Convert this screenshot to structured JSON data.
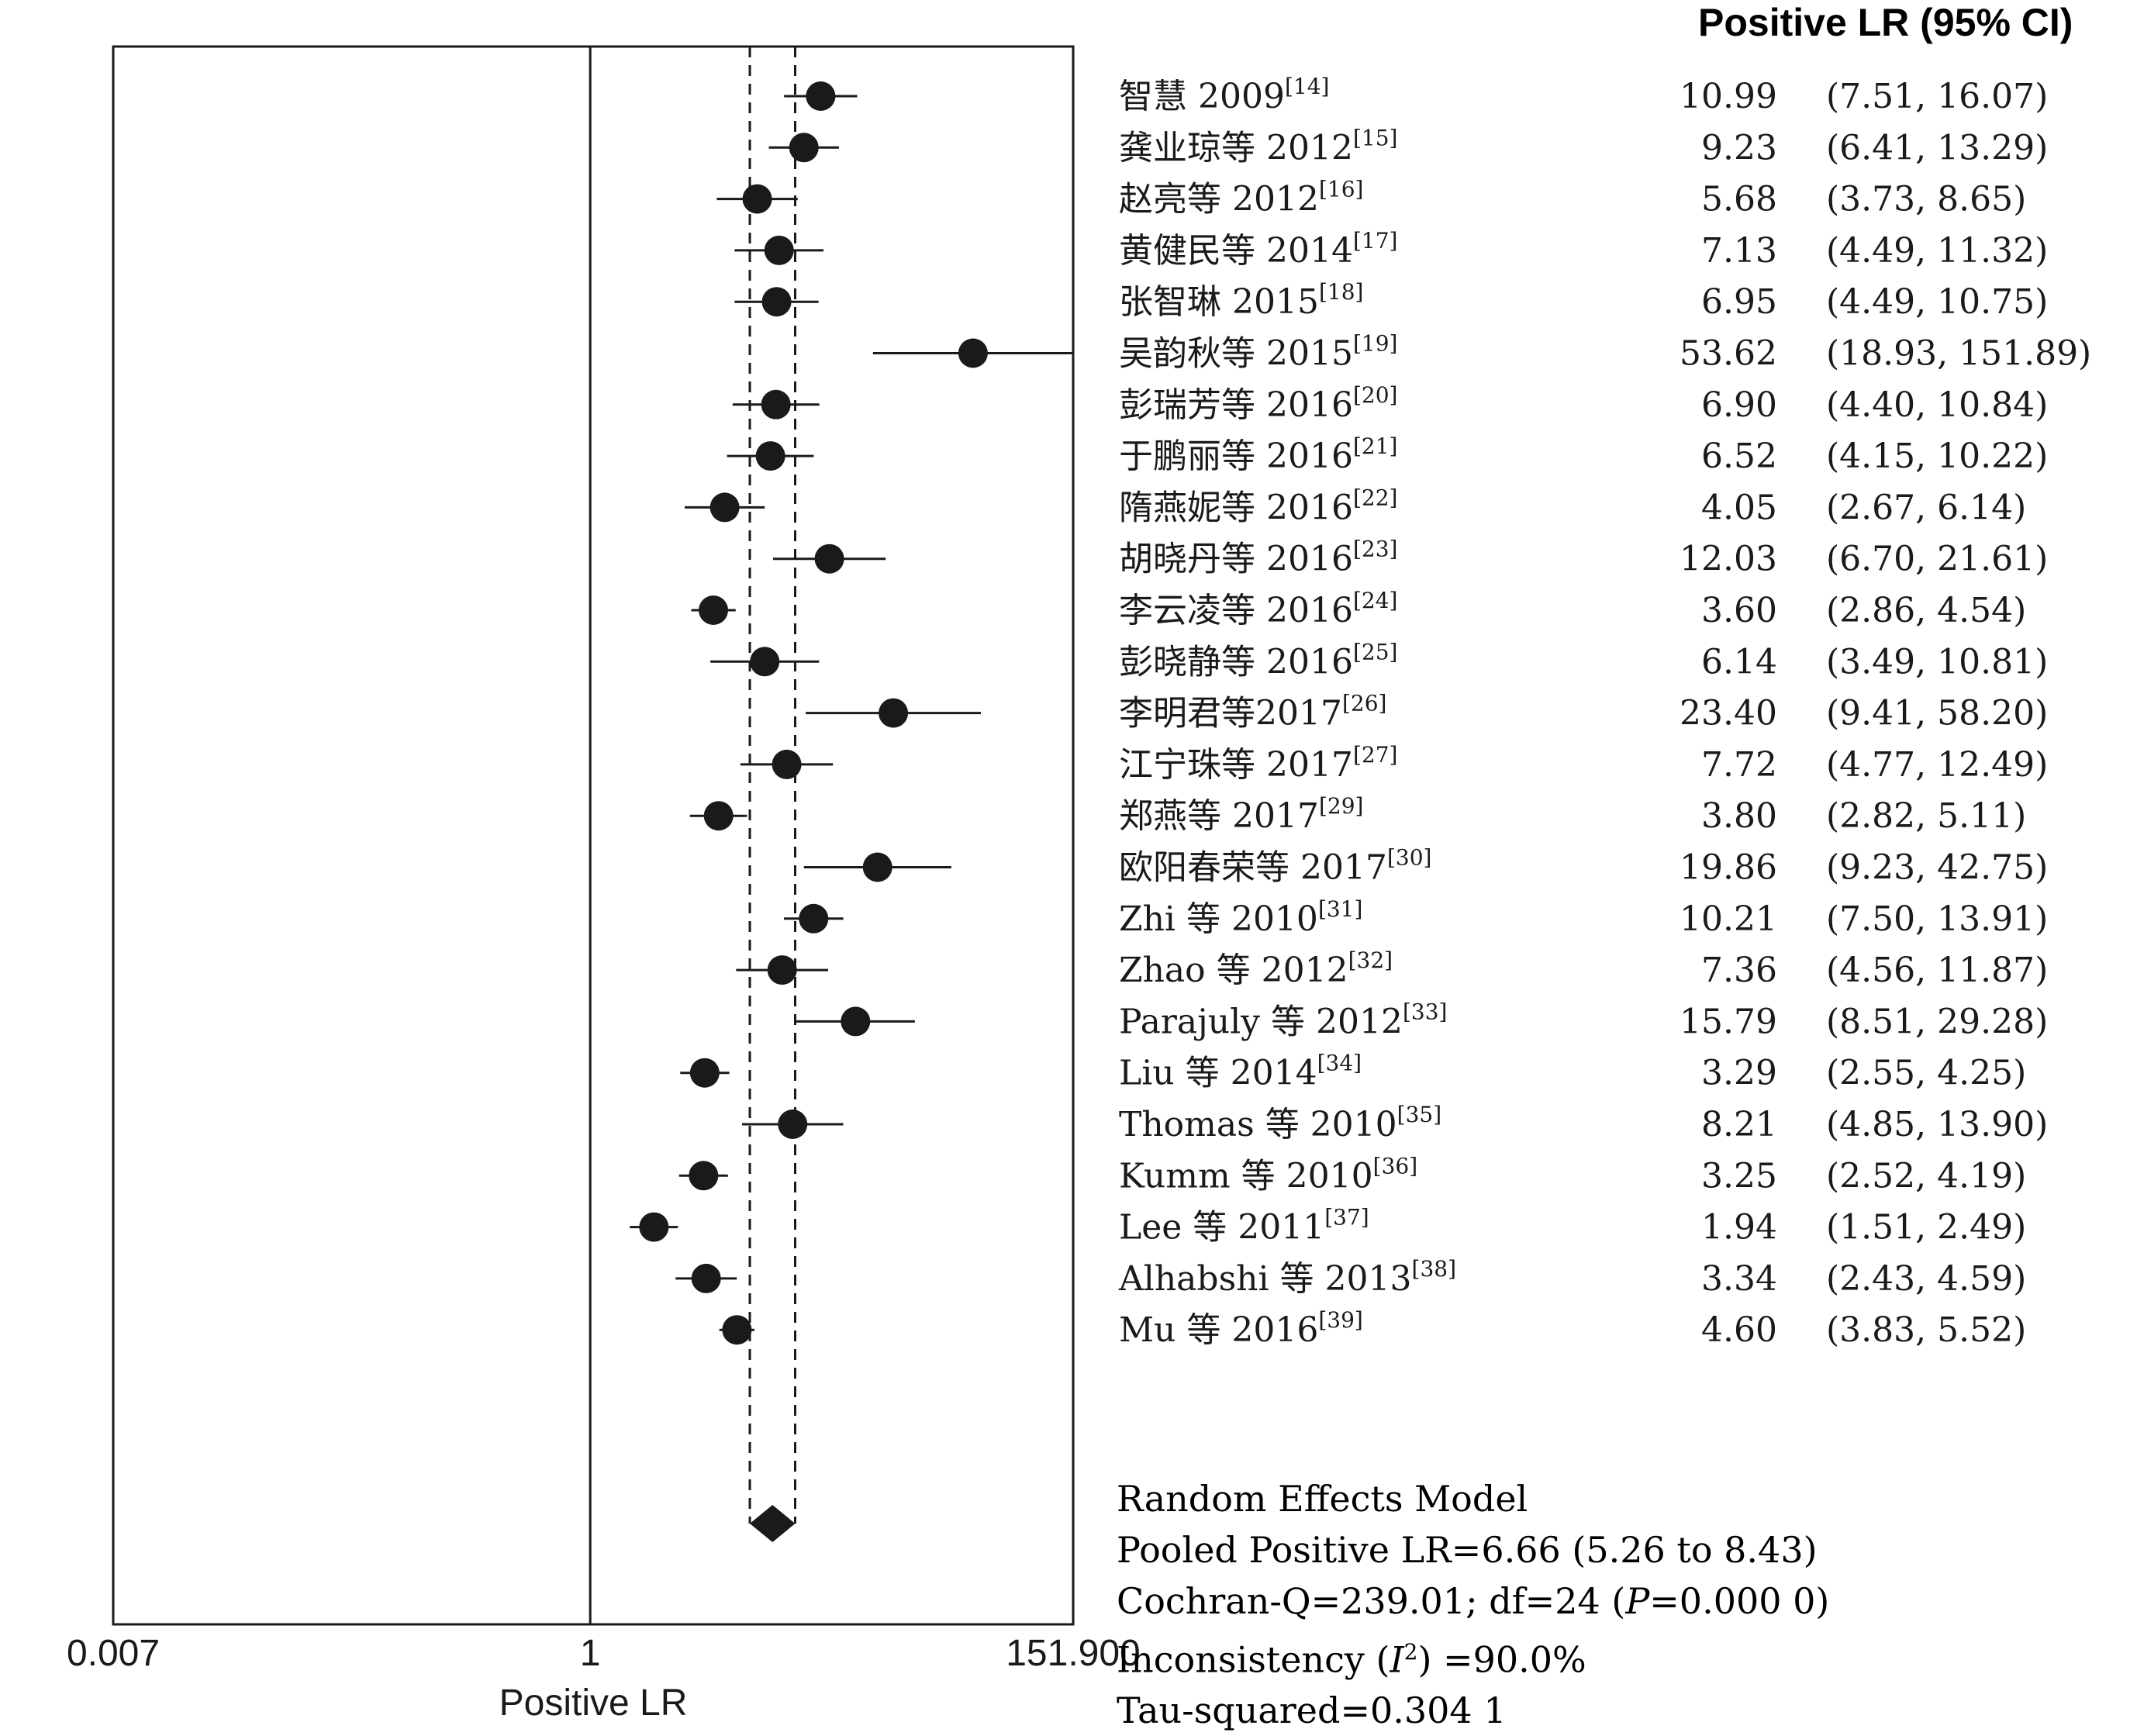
{
  "chart_data": {
    "type": "forest",
    "xlabel": "Positive LR",
    "x_scale": "log",
    "xlim": [
      0.007,
      151.9
    ],
    "x_ticks": [
      "0.007",
      "1",
      "151.900"
    ],
    "reference_line": 1,
    "pooled_ci_lines": [
      5.26,
      8.43
    ],
    "column_header": "Positive LR (95% CI)",
    "studies": [
      {
        "label": "智慧 2009",
        "ref": "[14]",
        "value": "10.99",
        "ci": "(7.51, 16.07)",
        "est": 10.99,
        "lo": 7.51,
        "hi": 16.07
      },
      {
        "label": "龚业琼等 2012",
        "ref": "[15]",
        "value": "9.23",
        "ci": "(6.41, 13.29)",
        "est": 9.23,
        "lo": 6.41,
        "hi": 13.29
      },
      {
        "label": "赵亮等 2012",
        "ref": "[16]",
        "value": "5.68",
        "ci": "(3.73, 8.65)",
        "est": 5.68,
        "lo": 3.73,
        "hi": 8.65
      },
      {
        "label": "黄健民等 2014",
        "ref": "[17]",
        "value": "7.13",
        "ci": "(4.49, 11.32)",
        "est": 7.13,
        "lo": 4.49,
        "hi": 11.32
      },
      {
        "label": "张智琳 2015",
        "ref": "[18]",
        "value": "6.95",
        "ci": "(4.49, 10.75)",
        "est": 6.95,
        "lo": 4.49,
        "hi": 10.75
      },
      {
        "label": "吴韵秋等 2015",
        "ref": "[19]",
        "value": "53.62",
        "ci": "(18.93, 151.89)",
        "est": 53.62,
        "lo": 18.93,
        "hi": 151.89
      },
      {
        "label": "彭瑞芳等 2016",
        "ref": "[20]",
        "value": "6.90",
        "ci": "(4.40, 10.84)",
        "est": 6.9,
        "lo": 4.4,
        "hi": 10.84
      },
      {
        "label": "于鹏丽等 2016",
        "ref": "[21]",
        "value": "6.52",
        "ci": "(4.15, 10.22)",
        "est": 6.52,
        "lo": 4.15,
        "hi": 10.22
      },
      {
        "label": "隋燕妮等 2016",
        "ref": "[22]",
        "value": "4.05",
        "ci": "(2.67, 6.14)",
        "est": 4.05,
        "lo": 2.67,
        "hi": 6.14
      },
      {
        "label": "胡晓丹等 2016",
        "ref": "[23]",
        "value": "12.03",
        "ci": "(6.70, 21.61)",
        "est": 12.03,
        "lo": 6.7,
        "hi": 21.61
      },
      {
        "label": "李云凌等 2016",
        "ref": "[24]",
        "value": "3.60",
        "ci": "(2.86, 4.54)",
        "est": 3.6,
        "lo": 2.86,
        "hi": 4.54
      },
      {
        "label": "彭晓静等 2016",
        "ref": "[25]",
        "value": "6.14",
        "ci": "(3.49, 10.81)",
        "est": 6.14,
        "lo": 3.49,
        "hi": 10.81
      },
      {
        "label": "李明君等2017",
        "ref": "[26]",
        "value": "23.40",
        "ci": "(9.41, 58.20)",
        "est": 23.4,
        "lo": 9.41,
        "hi": 58.2
      },
      {
        "label": "江宁珠等 2017",
        "ref": "[27]",
        "value": "7.72",
        "ci": "(4.77, 12.49)",
        "est": 7.72,
        "lo": 4.77,
        "hi": 12.49
      },
      {
        "label": "郑燕等 2017",
        "ref": "[29]",
        "value": "3.80",
        "ci": "(2.82, 5.11)",
        "est": 3.8,
        "lo": 2.82,
        "hi": 5.11
      },
      {
        "label": "欧阳春荣等 2017",
        "ref": "[30]",
        "value": "19.86",
        "ci": "(9.23, 42.75)",
        "est": 19.86,
        "lo": 9.23,
        "hi": 42.75
      },
      {
        "label": "Zhi 等 2010",
        "ref": "[31]",
        "value": "10.21",
        "ci": "(7.50, 13.91)",
        "est": 10.21,
        "lo": 7.5,
        "hi": 13.91
      },
      {
        "label": "Zhao 等 2012",
        "ref": "[32]",
        "value": "7.36",
        "ci": "(4.56, 11.87)",
        "est": 7.36,
        "lo": 4.56,
        "hi": 11.87
      },
      {
        "label": "Parajuly 等 2012",
        "ref": "[33]",
        "value": "15.79",
        "ci": "(8.51, 29.28)",
        "est": 15.79,
        "lo": 8.51,
        "hi": 29.28
      },
      {
        "label": "Liu 等 2014",
        "ref": "[34]",
        "value": "3.29",
        "ci": "(2.55, 4.25)",
        "est": 3.29,
        "lo": 2.55,
        "hi": 4.25
      },
      {
        "label": "Thomas 等 2010",
        "ref": "[35]",
        "value": "8.21",
        "ci": "(4.85, 13.90)",
        "est": 8.21,
        "lo": 4.85,
        "hi": 13.9
      },
      {
        "label": "Kumm 等 2010",
        "ref": "[36]",
        "value": "3.25",
        "ci": "(2.52, 4.19)",
        "est": 3.25,
        "lo": 2.52,
        "hi": 4.19
      },
      {
        "label": "Lee 等 2011",
        "ref": "[37]",
        "value": "1.94",
        "ci": "(1.51, 2.49)",
        "est": 1.94,
        "lo": 1.51,
        "hi": 2.49
      },
      {
        "label": "Alhabshi 等 2013",
        "ref": "[38]",
        "value": "3.34",
        "ci": "(2.43, 4.59)",
        "est": 3.34,
        "lo": 2.43,
        "hi": 4.59
      },
      {
        "label": "Mu 等 2016",
        "ref": "[39]",
        "value": "4.60",
        "ci": "(3.83, 5.52)",
        "est": 4.6,
        "lo": 3.83,
        "hi": 5.52
      }
    ],
    "pooled": {
      "est": 6.66,
      "lo": 5.26,
      "hi": 8.43
    }
  },
  "summary": {
    "model": "Random Effects Model",
    "pooled": "Pooled Positive LR=6.66 (5.26 to 8.43)",
    "cochran_pre": "Cochran-Q=239.01; df=24 (",
    "cochran_p": "P",
    "cochran_post": "=0.000 0)",
    "inconsistency_pre": "Inconsistency (",
    "inconsistency_i": "I",
    "inconsistency_sup": "2",
    "inconsistency_post": ") =90.0%",
    "tau": "Tau-squared=0.304 1"
  },
  "colors": {
    "ink": "#1a1a1a",
    "background": "#ffffff"
  }
}
